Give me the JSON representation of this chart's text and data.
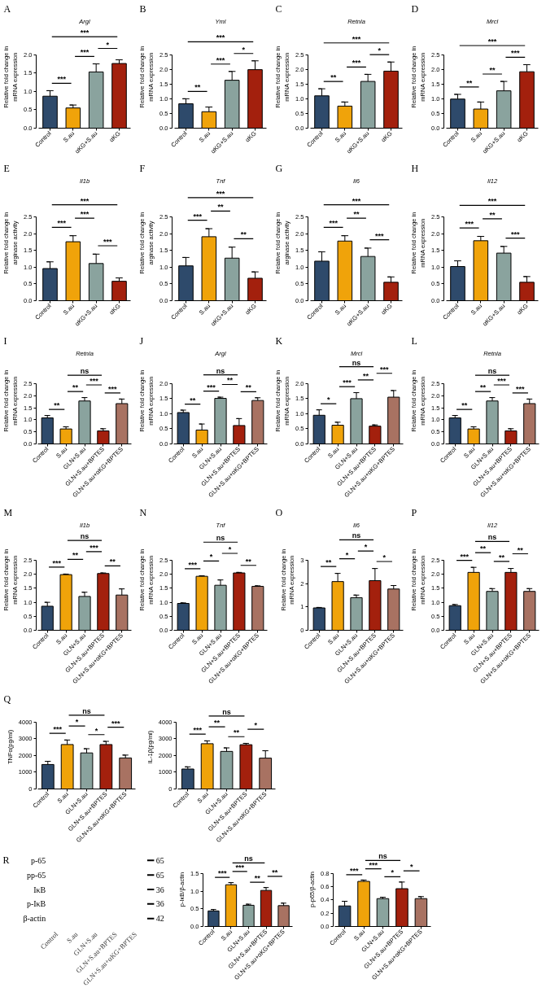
{
  "chart_data": [
    {
      "type": "bar",
      "title": "A",
      "subtitle": "Argl",
      "ylabel": "Relative fold change in mRNA expression",
      "categories": [
        "Control",
        "S.au",
        "αKG+S.au",
        "αKG"
      ],
      "values": [
        0.87,
        0.55,
        1.53,
        1.76
      ],
      "errors": [
        0.15,
        0.08,
        0.22,
        0.1
      ],
      "colors": [
        "#2e4a6b",
        "#f0a30a",
        "#8aa39e",
        "#a3200d"
      ],
      "ylim": [
        0,
        2
      ],
      "yticks": [
        {
          "value": 0,
          "label": "0.0"
        },
        0.5,
        {
          "value": 1,
          "label": "1.0"
        },
        1.5,
        {
          "value": 2,
          "label": "2.0"
        }
      ],
      "annotations": [
        "***",
        "***",
        "*",
        "***"
      ]
    },
    {
      "type": "bar",
      "title": "B",
      "subtitle": "Yml",
      "ylabel": "Relative fold change in mRNA expression",
      "categories": [
        "Control",
        "S.au",
        "αKG+S.au",
        "αKG"
      ],
      "values": [
        0.83,
        0.56,
        1.63,
        1.99
      ],
      "errors": [
        0.17,
        0.16,
        0.3,
        0.3
      ],
      "colors": [
        "#2e4a6b",
        "#f0a30a",
        "#8aa39e",
        "#a3200d"
      ],
      "ylim": [
        0,
        2.5
      ],
      "yticks": [
        {
          "value": 0,
          "label": "0.0"
        },
        0.5,
        {
          "value": 1,
          "label": "1.0"
        },
        1.5,
        {
          "value": 2,
          "label": "2.0"
        },
        2.5
      ],
      "annotations": [
        "**",
        "***",
        "*",
        "***"
      ]
    },
    {
      "type": "bar",
      "title": "C",
      "subtitle": "Retnla",
      "ylabel": "Relative fold change in mRNA expression",
      "categories": [
        "Control",
        "S.au",
        "αKG+S.au",
        "αKG"
      ],
      "values": [
        1.1,
        0.75,
        1.59,
        1.94
      ],
      "errors": [
        0.24,
        0.14,
        0.24,
        0.31
      ],
      "colors": [
        "#2e4a6b",
        "#f0a30a",
        "#8aa39e",
        "#a3200d"
      ],
      "ylim": [
        0,
        2.5
      ],
      "yticks": [
        {
          "value": 0,
          "label": "0.0"
        },
        0.5,
        {
          "value": 1,
          "label": "1.0"
        },
        1.5,
        {
          "value": 2,
          "label": "2.0"
        },
        2.5
      ],
      "annotations": [
        "**",
        "***",
        "*",
        "***"
      ]
    },
    {
      "type": "bar",
      "title": "D",
      "subtitle": "Mrcl",
      "ylabel": "Relative fold change in mRNA expression",
      "categories": [
        "Control",
        "S.au",
        "αKG+S.au",
        "αKG"
      ],
      "values": [
        0.99,
        0.65,
        1.27,
        1.92
      ],
      "errors": [
        0.16,
        0.24,
        0.32,
        0.24
      ],
      "colors": [
        "#2e4a6b",
        "#f0a30a",
        "#8aa39e",
        "#a3200d"
      ],
      "ylim": [
        0,
        2.5
      ],
      "yticks": [
        {
          "value": 0,
          "label": "0.0"
        },
        0.5,
        {
          "value": 1,
          "label": "1.0"
        },
        1.5,
        {
          "value": 2,
          "label": "2.0"
        },
        2.5
      ],
      "annotations": [
        "**",
        "**",
        "***",
        "***"
      ]
    },
    {
      "type": "bar",
      "title": "E",
      "subtitle": "Il1b",
      "ylabel": "Relative fold change in arginase activity",
      "categories": [
        "Control",
        "S.au",
        "αKG+S.au",
        "αKG"
      ],
      "values": [
        0.96,
        1.76,
        1.11,
        0.58
      ],
      "errors": [
        0.2,
        0.18,
        0.28,
        0.1
      ],
      "colors": [
        "#2e4a6b",
        "#f0a30a",
        "#8aa39e",
        "#a3200d"
      ],
      "ylim": [
        0,
        2.5
      ],
      "yticks": [
        {
          "value": 0,
          "label": "0.0"
        },
        0.5,
        {
          "value": 1,
          "label": "1.0"
        },
        1.5,
        {
          "value": 2,
          "label": "2.0"
        },
        2.5
      ],
      "annotations": [
        "***",
        "***",
        "***",
        "***"
      ]
    },
    {
      "type": "bar",
      "title": "F",
      "subtitle": "Tnf",
      "ylabel": "Relative fold change in arginase activity",
      "categories": [
        "Control",
        "S.au",
        "αKG+S.au",
        "αKG"
      ],
      "values": [
        1.04,
        1.91,
        1.27,
        0.67
      ],
      "errors": [
        0.25,
        0.24,
        0.33,
        0.19
      ],
      "colors": [
        "#2e4a6b",
        "#f0a30a",
        "#8aa39e",
        "#a3200d"
      ],
      "ylim": [
        0,
        2.5
      ],
      "yticks": [
        {
          "value": 0,
          "label": "0.0"
        },
        0.5,
        {
          "value": 1,
          "label": "1.0"
        },
        1.5,
        {
          "value": 2,
          "label": "2.0"
        },
        2.5
      ],
      "annotations": [
        "***",
        "**",
        "**",
        "***"
      ]
    },
    {
      "type": "bar",
      "title": "G",
      "subtitle": "Il6",
      "ylabel": "Relative fold change in arginase activity",
      "categories": [
        "Control",
        "S.au",
        "αKG+S.au",
        "αKG"
      ],
      "values": [
        1.18,
        1.78,
        1.32,
        0.55
      ],
      "errors": [
        0.28,
        0.16,
        0.25,
        0.16
      ],
      "colors": [
        "#2e4a6b",
        "#f0a30a",
        "#8aa39e",
        "#a3200d"
      ],
      "ylim": [
        0,
        2.5
      ],
      "yticks": [
        {
          "value": 0,
          "label": "0.0"
        },
        0.5,
        {
          "value": 1,
          "label": "1.0"
        },
        1.5,
        {
          "value": 2,
          "label": "2.0"
        },
        2.5
      ],
      "annotations": [
        "***",
        "**",
        "***",
        "***"
      ]
    },
    {
      "type": "bar",
      "title": "H",
      "subtitle": "Il12",
      "ylabel": "Relative fold change in mRNA expression",
      "categories": [
        "Control",
        "S.au",
        "αKG+S.au",
        "αKG"
      ],
      "values": [
        1.02,
        1.79,
        1.42,
        0.55
      ],
      "errors": [
        0.17,
        0.13,
        0.2,
        0.17
      ],
      "colors": [
        "#2e4a6b",
        "#f0a30a",
        "#8aa39e",
        "#a3200d"
      ],
      "ylim": [
        0,
        2.5
      ],
      "yticks": [
        {
          "value": 0,
          "label": "0.0"
        },
        0.5,
        {
          "value": 1,
          "label": "1.0"
        },
        1.5,
        {
          "value": 2,
          "label": "2.0"
        },
        2.5
      ],
      "annotations": [
        "***",
        "**",
        "***",
        "***"
      ]
    },
    {
      "type": "bar",
      "title": "I",
      "subtitle": "Retnla",
      "ylabel": "Relative fold change in mRNA expression",
      "categories": [
        "Control",
        "S.au",
        "GLN+S.au",
        "GLN+S.au+BPTES",
        "GLN+S.au+αKG+BPTES"
      ],
      "values": [
        1.08,
        0.62,
        1.78,
        0.54,
        1.67
      ],
      "errors": [
        0.1,
        0.09,
        0.14,
        0.09,
        0.19
      ],
      "colors": [
        "#2e4a6b",
        "#f0a30a",
        "#8aa39e",
        "#a3200d",
        "#a87262"
      ],
      "ylim": [
        0,
        2.5
      ],
      "yticks": [
        {
          "value": 0,
          "label": "0.0"
        },
        0.5,
        {
          "value": 1,
          "label": "1.0"
        },
        1.5,
        {
          "value": 2,
          "label": "2.0"
        },
        2.5
      ],
      "annotations": [
        "**",
        "**",
        "***",
        "***",
        "ns"
      ]
    },
    {
      "type": "bar",
      "title": "J",
      "subtitle": "Argl",
      "ylabel": "Relative fold change in mRNA expression",
      "categories": [
        "Control",
        "S.au",
        "GLN+S.au",
        "GLN+S.au+BPTES",
        "GLN+S.au+αKG+BPTES"
      ],
      "values": [
        1.04,
        0.46,
        1.51,
        0.61,
        1.44
      ],
      "errors": [
        0.08,
        0.2,
        [
          1.51,
          1.55
        ],
        0.23,
        0.09
      ],
      "colors": [
        "#2e4a6b",
        "#f0a30a",
        "#8aa39e",
        "#a3200d",
        "#a87262"
      ],
      "ylim": [
        0,
        2
      ],
      "yticks": [
        {
          "value": 0,
          "label": "0.0"
        },
        0.5,
        {
          "value": 1,
          "label": "1.0"
        },
        1.5,
        {
          "value": 2,
          "label": "2.0"
        }
      ],
      "annotations": [
        "**",
        "***",
        "**",
        "**",
        "ns"
      ]
    },
    {
      "type": "bar",
      "title": "K",
      "subtitle": "Mrcl",
      "ylabel": "Relative fold change in mRNA expression",
      "categories": [
        "Control",
        "S.au",
        "GLN+S.au",
        "GLN+S.au+BPTES",
        "GLN+S.au+αKG+BPTES"
      ],
      "values": [
        0.95,
        0.62,
        1.5,
        0.59,
        1.55
      ],
      "errors": [
        0.18,
        0.1,
        0.2,
        [
          0.59,
          0.63
        ],
        0.22
      ],
      "colors": [
        "#2e4a6b",
        "#f0a30a",
        "#8aa39e",
        "#a3200d",
        "#a87262"
      ],
      "ylim": [
        0,
        2
      ],
      "yticks": [
        {
          "value": 0,
          "label": "0.0"
        },
        0.5,
        {
          "value": 1,
          "label": "1.0"
        },
        1.5,
        {
          "value": 2,
          "label": "2.0"
        }
      ],
      "annotations": [
        "*",
        "***",
        "**",
        "***",
        "ns"
      ]
    },
    {
      "type": "bar",
      "title": "L",
      "subtitle": "Retnla",
      "ylabel": "Relative fold change in mRNA expression",
      "categories": [
        "Control",
        "S.au",
        "GLN+S.au",
        "GLN+S.au+BPTES",
        "GLN+S.au+αKG+BPTES"
      ],
      "values": [
        1.08,
        0.62,
        1.78,
        0.54,
        1.67
      ],
      "errors": [
        0.1,
        0.09,
        0.14,
        0.09,
        0.19
      ],
      "colors": [
        "#2e4a6b",
        "#f0a30a",
        "#8aa39e",
        "#a3200d",
        "#a87262"
      ],
      "ylim": [
        0,
        2.5
      ],
      "yticks": [
        {
          "value": 0,
          "label": "0.0"
        },
        0.5,
        {
          "value": 1,
          "label": "1.0"
        },
        1.5,
        {
          "value": 2,
          "label": "2.0"
        },
        2.5
      ],
      "annotations": [
        "**",
        "**",
        "***",
        "***",
        "ns"
      ]
    },
    {
      "type": "bar",
      "title": "M",
      "subtitle": "Il1b",
      "ylabel": "Relative fold change in mRNA expression",
      "categories": [
        "Control",
        "S.au",
        "GLN+S.au",
        "GLN+S.au+BPTES",
        "GLN+S.au+αKG+BPTES"
      ],
      "values": [
        0.86,
        1.99,
        1.21,
        2.03,
        1.26
      ],
      "errors": [
        0.14,
        0.02,
        0.15,
        0.02,
        0.22
      ],
      "colors": [
        "#2e4a6b",
        "#f0a30a",
        "#8aa39e",
        "#a3200d",
        "#a87262"
      ],
      "ylim": [
        0,
        2.5
      ],
      "yticks": [
        {
          "value": 0,
          "label": "0.0"
        },
        0.5,
        {
          "value": 1,
          "label": "1.0"
        },
        1.5,
        {
          "value": 2,
          "label": "2.0"
        },
        2.5
      ],
      "annotations": [
        "***",
        "**",
        "***",
        "**",
        "ns"
      ]
    },
    {
      "type": "bar",
      "title": "N",
      "subtitle": "Tnf",
      "ylabel": "Relative fold change in mRNA expression",
      "categories": [
        "Control",
        "S.au",
        "GLN+S.au",
        "GLN+S.au+BPTES",
        "GLN+S.au+αKG+BPTES"
      ],
      "values": [
        0.96,
        1.93,
        1.61,
        2.05,
        1.57
      ],
      "errors": [
        0.02,
        0.02,
        0.19,
        0.02,
        0.02
      ],
      "colors": [
        "#2e4a6b",
        "#f0a30a",
        "#8aa39e",
        "#a3200d",
        "#a87262"
      ],
      "ylim": [
        0,
        2.5
      ],
      "yticks": [
        {
          "value": 0,
          "label": "0.0"
        },
        0.5,
        {
          "value": 1,
          "label": "1.0"
        },
        1.5,
        {
          "value": 2,
          "label": "2.0"
        },
        2.5
      ],
      "annotations": [
        "***",
        "*",
        "*",
        "**",
        "ns"
      ]
    },
    {
      "type": "bar",
      "title": "O",
      "subtitle": "Il6",
      "ylabel": "Relative fold change in mRNA expression",
      "categories": [
        "Control",
        "S.au",
        "GLN+S.au",
        "GLN+S.au+BPTES",
        "GLN+S.au+αKG+BPTES"
      ],
      "values": [
        0.96,
        2.09,
        1.4,
        2.13,
        1.77
      ],
      "errors": [
        0.02,
        0.35,
        0.11,
        0.52,
        0.15
      ],
      "colors": [
        "#2e4a6b",
        "#f0a30a",
        "#8aa39e",
        "#a3200d",
        "#a87262"
      ],
      "ylim": [
        0,
        3
      ],
      "yticks": [
        0,
        1,
        2,
        3
      ],
      "annotations": [
        "**",
        "*",
        "*",
        "*",
        "ns"
      ]
    },
    {
      "type": "bar",
      "title": "P",
      "subtitle": "Il12",
      "ylabel": "Relative fold change in mRNA expression",
      "categories": [
        "Control",
        "S.au",
        "GLN+S.au",
        "GLN+S.au+BPTES",
        "GLN+S.au+αKG+BPTES"
      ],
      "values": [
        0.88,
        2.07,
        1.39,
        2.07,
        1.39
      ],
      "errors": [
        [
          0.88,
          0.92
        ],
        0.18,
        0.1,
        0.14,
        0.1
      ],
      "colors": [
        "#2e4a6b",
        "#f0a30a",
        "#8aa39e",
        "#a3200d",
        "#a87262"
      ],
      "ylim": [
        0,
        2.5
      ],
      "yticks": [
        {
          "value": 0,
          "label": "0.0"
        },
        0.5,
        {
          "value": 1,
          "label": "1.0"
        },
        1.5,
        {
          "value": 2,
          "label": "2.0"
        },
        2.5
      ],
      "annotations": [
        "***",
        "**",
        "**",
        "**",
        "ns"
      ]
    },
    {
      "type": "bar",
      "title": "Q",
      "ylabel": "TNFα(pg/ml)",
      "categories": [
        "Control",
        "S.au",
        "GLN+S.au",
        "GLN+S.au+BPTES",
        "GLN+S.au+αKG+BPTES"
      ],
      "values": [
        1460,
        2650,
        2150,
        2650,
        1850
      ],
      "errors": [
        190,
        270,
        250,
        190,
        170
      ],
      "colors": [
        "#2e4a6b",
        "#f0a30a",
        "#8aa39e",
        "#a3200d",
        "#a87262"
      ],
      "ylim": [
        0,
        4000
      ],
      "yticks": [
        0,
        1000,
        2000,
        3000,
        4000
      ],
      "annotations": [
        "***",
        "*",
        "*",
        "***",
        "ns"
      ]
    },
    {
      "type": "bar",
      "ylabel": "IL-1β(pg/ml)",
      "categories": [
        "Control",
        "S.au",
        "GLN+S.au",
        "GLN+S.au+BPTES",
        "GLN+S.au+αKG+BPTES"
      ],
      "values": [
        1190,
        2700,
        2240,
        2640,
        1840
      ],
      "errors": [
        130,
        170,
        210,
        80,
        440
      ],
      "colors": [
        "#2e4a6b",
        "#f0a30a",
        "#8aa39e",
        "#a3200d",
        "#a87262"
      ],
      "ylim": [
        0,
        4000
      ],
      "yticks": [
        0,
        1000,
        2000,
        3000,
        4000
      ],
      "annotations": [
        "***",
        "**",
        "**",
        "*",
        "ns"
      ]
    },
    {
      "type": "other",
      "title": "R",
      "y_categories": [
        "p-65",
        "pp-65",
        "IκB",
        "p-IκB",
        "β-actin"
      ],
      "y2_categories": [
        "65",
        "65",
        "36",
        "36",
        "42"
      ],
      "categories": [
        "Control",
        "S.au",
        "GLN+S.au",
        "GLN+S.au+BPTES",
        "GLN+S.au+αKG+BPTES"
      ]
    },
    {
      "type": "bar",
      "ylabel": "p-IκB/β-actin",
      "categories": [
        "Control",
        "S.au",
        "GLN+S.au",
        "GLN+S.au+BPTES",
        "GLN+S.au+αKG+BPTES"
      ],
      "values": [
        0.44,
        1.18,
        0.6,
        1.02,
        0.59
      ],
      "errors": [
        0.04,
        0.06,
        [
          0.6,
          0.63
        ],
        0.08,
        0.07
      ],
      "colors": [
        "#2e4a6b",
        "#f0a30a",
        "#8aa39e",
        "#a3200d",
        "#a87262"
      ],
      "ylim": [
        0,
        1.5
      ],
      "yticks": [
        {
          "value": 0,
          "label": "0.0"
        },
        0.5,
        {
          "value": 1,
          "label": "1.0"
        },
        1.5
      ],
      "annotations": [
        "***",
        "***",
        "**",
        "**",
        "ns"
      ]
    },
    {
      "type": "bar",
      "ylabel": "p-p65/β-actin",
      "categories": [
        "Control",
        "S.au",
        "GLN+S.au",
        "GLN+S.au+BPTES",
        "GLN+S.au+αKG+BPTES"
      ],
      "values": [
        0.31,
        0.68,
        0.42,
        0.57,
        0.42
      ],
      "errors": [
        0.07,
        0.02,
        0.02,
        0.1,
        0.03
      ],
      "colors": [
        "#2e4a6b",
        "#f0a30a",
        "#8aa39e",
        "#a3200d",
        "#a87262"
      ],
      "ylim": [
        0,
        0.8
      ],
      "yticks": [
        {
          "value": 0,
          "label": "0.0"
        },
        0.2,
        0.4,
        0.6,
        0.8
      ],
      "annotations": [
        "***",
        "***",
        "*",
        "*",
        "ns"
      ]
    }
  ]
}
